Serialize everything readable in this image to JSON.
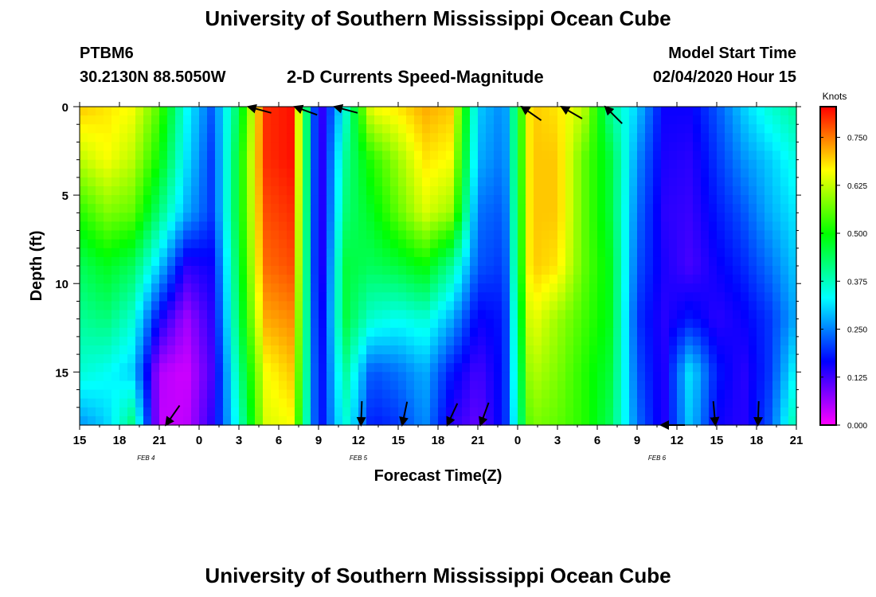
{
  "header": {
    "title_top": "University of Southern Mississippi Ocean Cube",
    "title_bottom": "University of Southern Mississippi Ocean Cube",
    "station_id": "PTBM6",
    "station_coords": "30.2130N 88.5050W",
    "subtitle": "2-D Currents Speed-Magnitude",
    "model_start_label": "Model Start Time",
    "model_start_value": "02/04/2020 Hour 15"
  },
  "colors": {
    "background": "#ffffff",
    "arrow": "#000000"
  },
  "chart_data": {
    "type": "heatmap",
    "title": "2-D Currents Speed-Magnitude",
    "xlabel": "Forecast Time(Z)",
    "ylabel": "Depth (ft)",
    "x_hours_range": [
      0,
      54
    ],
    "x_tick_labels": [
      "15",
      "18",
      "21",
      "0",
      "3",
      "6",
      "9",
      "12",
      "15",
      "18",
      "21",
      "0",
      "3",
      "6",
      "9",
      "12",
      "15",
      "18",
      "21"
    ],
    "date_labels": [
      {
        "text": "FEB 4",
        "hour": 5
      },
      {
        "text": "FEB 5",
        "hour": 21
      },
      {
        "text": "FEB 6",
        "hour": 43.5
      }
    ],
    "depth_range_ft": [
      0,
      18
    ],
    "y_ticks": [
      0,
      5,
      10,
      15
    ],
    "colorbar": {
      "label": "Knots",
      "range": [
        0,
        0.83
      ],
      "tick_values": [
        0.0,
        0.125,
        0.25,
        0.375,
        0.5,
        0.625,
        0.75
      ],
      "tick_labels": [
        "0.000",
        "0.125",
        "0.250",
        "0.375",
        "0.500",
        "0.625",
        "0.750"
      ]
    },
    "hours": [
      0,
      2,
      4,
      6,
      8,
      10,
      12,
      14,
      16,
      18,
      20,
      22,
      24,
      26,
      28,
      30,
      32,
      34,
      36,
      38,
      40,
      42,
      44,
      46,
      48,
      50,
      52,
      54
    ],
    "depths_ft": [
      0,
      3,
      6,
      9,
      12,
      15,
      18
    ],
    "speed_knots": [
      [
        0.7,
        0.68,
        0.66,
        0.55,
        0.34,
        0.22,
        0.45,
        0.8,
        0.82,
        0.1,
        0.35,
        0.66,
        0.68,
        0.72,
        0.7,
        0.3,
        0.25,
        0.7,
        0.68,
        0.62,
        0.4,
        0.3,
        0.16,
        0.16,
        0.22,
        0.3,
        0.36,
        0.4
      ],
      [
        0.62,
        0.66,
        0.62,
        0.5,
        0.32,
        0.2,
        0.48,
        0.8,
        0.82,
        0.1,
        0.4,
        0.52,
        0.6,
        0.68,
        0.66,
        0.28,
        0.24,
        0.7,
        0.7,
        0.56,
        0.46,
        0.26,
        0.15,
        0.14,
        0.2,
        0.26,
        0.3,
        0.35
      ],
      [
        0.52,
        0.58,
        0.56,
        0.42,
        0.28,
        0.2,
        0.48,
        0.78,
        0.8,
        0.1,
        0.42,
        0.48,
        0.56,
        0.64,
        0.6,
        0.24,
        0.22,
        0.7,
        0.7,
        0.56,
        0.46,
        0.24,
        0.14,
        0.13,
        0.18,
        0.22,
        0.28,
        0.32
      ],
      [
        0.44,
        0.48,
        0.44,
        0.3,
        0.14,
        0.16,
        0.46,
        0.76,
        0.78,
        0.1,
        0.46,
        0.44,
        0.46,
        0.5,
        0.4,
        0.22,
        0.2,
        0.7,
        0.68,
        0.56,
        0.48,
        0.22,
        0.15,
        0.12,
        0.16,
        0.19,
        0.24,
        0.3
      ],
      [
        0.4,
        0.42,
        0.36,
        0.16,
        0.06,
        0.14,
        0.44,
        0.72,
        0.74,
        0.12,
        0.46,
        0.36,
        0.34,
        0.36,
        0.28,
        0.16,
        0.18,
        0.66,
        0.6,
        0.54,
        0.48,
        0.2,
        0.14,
        0.18,
        0.14,
        0.16,
        0.2,
        0.28
      ],
      [
        0.36,
        0.34,
        0.3,
        0.05,
        0.03,
        0.12,
        0.4,
        0.66,
        0.7,
        0.14,
        0.4,
        0.22,
        0.24,
        0.28,
        0.18,
        0.12,
        0.18,
        0.62,
        0.58,
        0.52,
        0.46,
        0.22,
        0.14,
        0.32,
        0.18,
        0.14,
        0.2,
        0.34
      ],
      [
        0.26,
        0.3,
        0.42,
        0.04,
        0.04,
        0.14,
        0.36,
        0.64,
        0.66,
        0.15,
        0.36,
        0.18,
        0.2,
        0.26,
        0.14,
        0.1,
        0.18,
        0.58,
        0.56,
        0.52,
        0.44,
        0.24,
        0.14,
        0.3,
        0.16,
        0.14,
        0.22,
        0.4
      ]
    ],
    "vectors": [
      {
        "hour": 12.7,
        "depth": 0,
        "angle": -15
      },
      {
        "hour": 16.2,
        "depth": 0,
        "angle": -20
      },
      {
        "hour": 19.2,
        "depth": 0,
        "angle": -15
      },
      {
        "hour": 33.3,
        "depth": 0,
        "angle": -35
      },
      {
        "hour": 36.3,
        "depth": 0,
        "angle": -30
      },
      {
        "hour": 39.6,
        "depth": 0,
        "angle": -45
      },
      {
        "hour": 6.5,
        "depth": 18,
        "angle": 55
      },
      {
        "hour": 21.2,
        "depth": 18,
        "angle": 88
      },
      {
        "hour": 24.3,
        "depth": 18,
        "angle": 78
      },
      {
        "hour": 27.7,
        "depth": 18,
        "angle": 65
      },
      {
        "hour": 30.2,
        "depth": 18,
        "angle": 70
      },
      {
        "hour": 43.8,
        "depth": 18,
        "angle": 0
      },
      {
        "hour": 47.9,
        "depth": 18,
        "angle": 95
      },
      {
        "hour": 51.1,
        "depth": 18,
        "angle": 88
      }
    ]
  }
}
